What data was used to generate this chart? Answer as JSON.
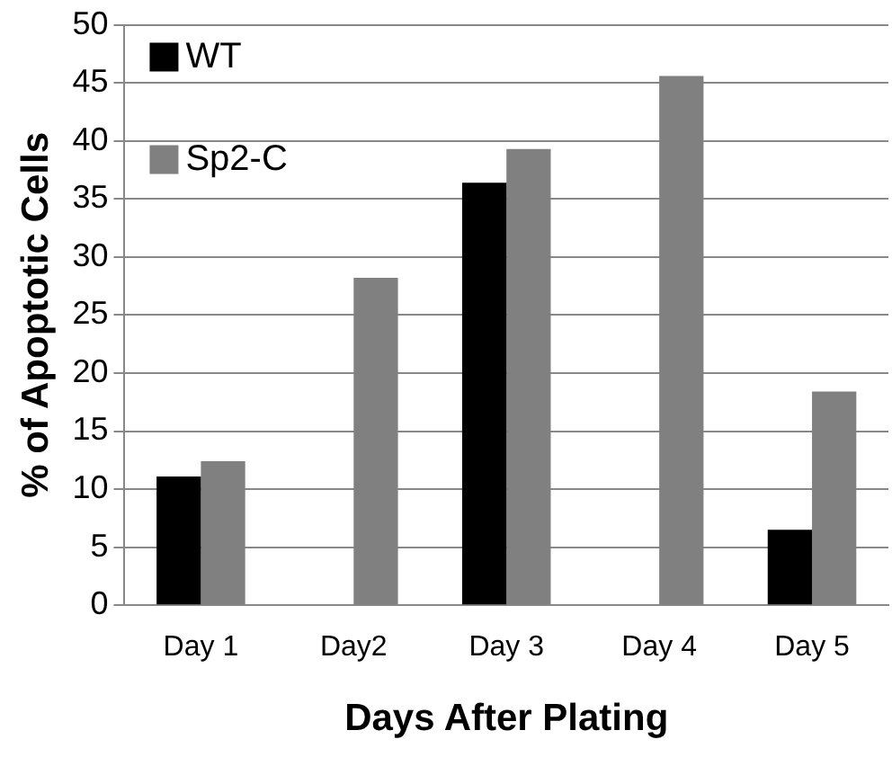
{
  "chart_data": {
    "type": "bar",
    "xlabel": "Days After Plating",
    "ylabel": "% of Apoptotic Cells",
    "categories": [
      "Day 1",
      "Day2",
      "Day 3",
      "Day 4",
      "Day 5"
    ],
    "series": [
      {
        "name": "WT",
        "color": "#000000",
        "values": [
          11.1,
          0,
          36.4,
          0,
          6.5
        ]
      },
      {
        "name": "Sp2-C",
        "color": "#808080",
        "values": [
          12.4,
          28.2,
          39.3,
          45.6,
          18.4
        ]
      }
    ],
    "ylim": [
      0,
      50
    ],
    "yticks": [
      0,
      5,
      10,
      15,
      20,
      25,
      30,
      35,
      40,
      45,
      50
    ],
    "grid": "y",
    "legend": "top left"
  }
}
